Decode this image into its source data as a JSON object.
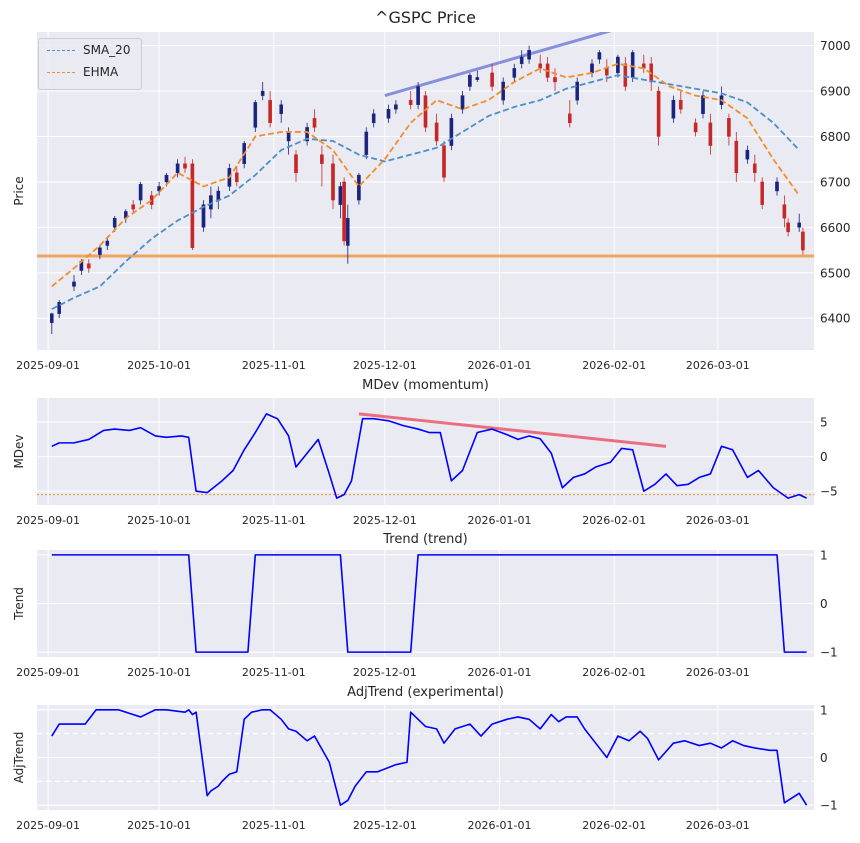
{
  "figure": {
    "background": "#ffffff",
    "axes_background": "#eaeaf2",
    "grid_color": "#ffffff"
  },
  "chart_data": [
    {
      "type": "candlestick",
      "title": "^GSPC Price",
      "ylabel": "Price",
      "ylim": [
        6330,
        7030
      ],
      "yticks": [
        "6400",
        "6500",
        "6600",
        "6700",
        "6800",
        "6900",
        "7000"
      ],
      "xticks": [
        "2025-09-01",
        "2025-10-01",
        "2025-11-01",
        "2025-12-01",
        "2026-01-01",
        "2026-02-01",
        "2026-03-01"
      ],
      "xrange": [
        "2025-08-29",
        "2026-03-27"
      ],
      "up_color": "#1a237e",
      "down_color": "#c62828",
      "ohlc": [
        [
          "2025-09-02",
          6390,
          6412,
          6365,
          6410
        ],
        [
          "2025-09-04",
          6410,
          6440,
          6400,
          6435
        ],
        [
          "2025-09-08",
          6470,
          6495,
          6460,
          6480
        ],
        [
          "2025-09-10",
          6505,
          6530,
          6495,
          6525
        ],
        [
          "2025-09-12",
          6520,
          6530,
          6500,
          6510
        ],
        [
          "2025-09-15",
          6540,
          6560,
          6530,
          6555
        ],
        [
          "2025-09-17",
          6560,
          6580,
          6550,
          6570
        ],
        [
          "2025-09-19",
          6600,
          6625,
          6590,
          6620
        ],
        [
          "2025-09-22",
          6620,
          6640,
          6610,
          6635
        ],
        [
          "2025-09-24",
          6650,
          6660,
          6630,
          6640
        ],
        [
          "2025-09-26",
          6660,
          6700,
          6650,
          6695
        ],
        [
          "2025-09-29",
          6670,
          6680,
          6640,
          6650
        ],
        [
          "2025-10-01",
          6680,
          6700,
          6670,
          6690
        ],
        [
          "2025-10-03",
          6700,
          6720,
          6690,
          6715
        ],
        [
          "2025-10-06",
          6720,
          6750,
          6710,
          6740
        ],
        [
          "2025-10-08",
          6740,
          6755,
          6720,
          6730
        ],
        [
          "2025-10-10",
          6740,
          6750,
          6550,
          6555
        ],
        [
          "2025-10-13",
          6600,
          6660,
          6590,
          6650
        ],
        [
          "2025-10-15",
          6640,
          6690,
          6620,
          6670
        ],
        [
          "2025-10-17",
          6660,
          6690,
          6640,
          6680
        ],
        [
          "2025-10-20",
          6690,
          6740,
          6680,
          6730
        ],
        [
          "2025-10-22",
          6720,
          6735,
          6690,
          6700
        ],
        [
          "2025-10-24",
          6740,
          6790,
          6730,
          6785
        ],
        [
          "2025-10-27",
          6820,
          6880,
          6810,
          6875
        ],
        [
          "2025-10-29",
          6890,
          6920,
          6880,
          6900
        ],
        [
          "2025-10-31",
          6880,
          6900,
          6820,
          6830
        ],
        [
          "2025-11-03",
          6850,
          6880,
          6830,
          6870
        ],
        [
          "2025-11-05",
          6790,
          6820,
          6760,
          6810
        ],
        [
          "2025-11-07",
          6760,
          6770,
          6700,
          6720
        ],
        [
          "2025-11-10",
          6790,
          6830,
          6780,
          6820
        ],
        [
          "2025-11-12",
          6840,
          6860,
          6810,
          6820
        ],
        [
          "2025-11-14",
          6760,
          6780,
          6690,
          6740
        ],
        [
          "2025-11-17",
          6740,
          6760,
          6640,
          6660
        ],
        [
          "2025-11-19",
          6650,
          6700,
          6620,
          6690
        ],
        [
          "2025-11-20",
          6700,
          6710,
          6560,
          6570
        ],
        [
          "2025-11-21",
          6560,
          6650,
          6520,
          6620
        ],
        [
          "2025-11-24",
          6660,
          6720,
          6650,
          6715
        ],
        [
          "2025-11-26",
          6760,
          6820,
          6750,
          6810
        ],
        [
          "2025-11-28",
          6830,
          6860,
          6820,
          6850
        ],
        [
          "2025-12-02",
          6840,
          6870,
          6830,
          6860
        ],
        [
          "2025-12-04",
          6860,
          6880,
          6850,
          6870
        ],
        [
          "2025-12-08",
          6880,
          6900,
          6860,
          6870
        ],
        [
          "2025-12-10",
          6870,
          6920,
          6860,
          6910
        ],
        [
          "2025-12-12",
          6890,
          6900,
          6810,
          6820
        ],
        [
          "2025-12-15",
          6830,
          6850,
          6780,
          6790
        ],
        [
          "2025-12-17",
          6780,
          6790,
          6700,
          6710
        ],
        [
          "2025-12-19",
          6780,
          6850,
          6770,
          6840
        ],
        [
          "2025-12-22",
          6860,
          6900,
          6850,
          6890
        ],
        [
          "2025-12-24",
          6910,
          6940,
          6900,
          6935
        ],
        [
          "2025-12-26",
          6925,
          6945,
          6920,
          6930
        ],
        [
          "2025-12-30",
          6940,
          6960,
          6900,
          6910
        ],
        [
          "2026-01-02",
          6880,
          6930,
          6870,
          6920
        ],
        [
          "2026-01-05",
          6930,
          6960,
          6920,
          6950
        ],
        [
          "2026-01-07",
          6960,
          6990,
          6950,
          6975
        ],
        [
          "2026-01-09",
          6970,
          7000,
          6960,
          6990
        ],
        [
          "2026-01-12",
          6960,
          6980,
          6940,
          6950
        ],
        [
          "2026-01-14",
          6960,
          6975,
          6920,
          6930
        ],
        [
          "2026-01-16",
          6930,
          6950,
          6900,
          6920
        ],
        [
          "2026-01-20",
          6850,
          6880,
          6820,
          6830
        ],
        [
          "2026-01-22",
          6880,
          6930,
          6870,
          6920
        ],
        [
          "2026-01-26",
          6940,
          6970,
          6930,
          6960
        ],
        [
          "2026-01-28",
          6970,
          6990,
          6960,
          6985
        ],
        [
          "2026-01-30",
          6950,
          6970,
          6920,
          6935
        ],
        [
          "2026-02-02",
          6940,
          6980,
          6930,
          6975
        ],
        [
          "2026-02-04",
          6960,
          6975,
          6900,
          6910
        ],
        [
          "2026-02-06",
          6930,
          6990,
          6920,
          6985
        ],
        [
          "2026-02-09",
          6960,
          6980,
          6940,
          6950
        ],
        [
          "2026-02-11",
          6960,
          6975,
          6900,
          6920
        ],
        [
          "2026-02-13",
          6900,
          6910,
          6780,
          6800
        ],
        [
          "2026-02-17",
          6840,
          6890,
          6830,
          6880
        ],
        [
          "2026-02-19",
          6880,
          6900,
          6850,
          6860
        ],
        [
          "2026-02-23",
          6830,
          6840,
          6800,
          6810
        ],
        [
          "2026-02-25",
          6850,
          6900,
          6840,
          6890
        ],
        [
          "2026-02-27",
          6830,
          6850,
          6760,
          6780
        ],
        [
          "2026-03-02",
          6870,
          6910,
          6860,
          6890
        ],
        [
          "2026-03-04",
          6840,
          6850,
          6780,
          6800
        ],
        [
          "2026-03-06",
          6790,
          6810,
          6700,
          6720
        ],
        [
          "2026-03-09",
          6750,
          6780,
          6740,
          6770
        ],
        [
          "2026-03-11",
          6740,
          6760,
          6700,
          6720
        ],
        [
          "2026-03-13",
          6700,
          6710,
          6640,
          6650
        ],
        [
          "2026-03-17",
          6680,
          6710,
          6670,
          6700
        ],
        [
          "2026-03-19",
          6650,
          6670,
          6600,
          6620
        ],
        [
          "2026-03-20",
          6610,
          6620,
          6580,
          6590
        ],
        [
          "2026-03-23",
          6600,
          6630,
          6590,
          6610
        ],
        [
          "2026-03-24",
          6590,
          6600,
          6540,
          6550
        ]
      ],
      "series": [
        {
          "name": "SMA_20",
          "color": "#4c8fc7",
          "style": "dashed",
          "x": [
            "2025-09-02",
            "2025-09-08",
            "2025-09-15",
            "2025-09-22",
            "2025-09-29",
            "2025-10-06",
            "2025-10-13",
            "2025-10-20",
            "2025-10-27",
            "2025-11-03",
            "2025-11-10",
            "2025-11-17",
            "2025-11-24",
            "2025-12-01",
            "2025-12-08",
            "2025-12-15",
            "2025-12-22",
            "2025-12-29",
            "2026-01-05",
            "2026-01-12",
            "2026-01-19",
            "2026-01-26",
            "2026-02-02",
            "2026-02-09",
            "2026-02-16",
            "2026-02-23",
            "2026-03-02",
            "2026-03-09",
            "2026-03-16",
            "2026-03-23"
          ],
          "y": [
            6420,
            6445,
            6470,
            6525,
            6575,
            6615,
            6645,
            6670,
            6715,
            6770,
            6795,
            6790,
            6760,
            6745,
            6760,
            6775,
            6810,
            6845,
            6865,
            6880,
            6905,
            6920,
            6935,
            6925,
            6915,
            6905,
            6895,
            6875,
            6830,
            6770
          ]
        },
        {
          "name": "EHMA",
          "color": "#f28e2b",
          "style": "dashed",
          "x": [
            "2025-09-02",
            "2025-09-08",
            "2025-09-15",
            "2025-09-22",
            "2025-09-29",
            "2025-10-06",
            "2025-10-13",
            "2025-10-20",
            "2025-10-27",
            "2025-11-03",
            "2025-11-10",
            "2025-11-17",
            "2025-11-24",
            "2025-12-01",
            "2025-12-08",
            "2025-12-15",
            "2025-12-22",
            "2025-12-29",
            "2026-01-05",
            "2026-01-12",
            "2026-01-19",
            "2026-01-26",
            "2026-02-02",
            "2026-02-09",
            "2026-02-16",
            "2026-02-23",
            "2026-03-02",
            "2026-03-09",
            "2026-03-16",
            "2026-03-23"
          ],
          "y": [
            6470,
            6510,
            6560,
            6620,
            6660,
            6720,
            6690,
            6710,
            6800,
            6810,
            6810,
            6770,
            6690,
            6750,
            6830,
            6880,
            6860,
            6880,
            6920,
            6950,
            6930,
            6940,
            6960,
            6950,
            6910,
            6890,
            6880,
            6840,
            6750,
            6670
          ]
        }
      ],
      "support_level": {
        "y": 6537,
        "color": "#f28e2b"
      },
      "trendline": {
        "x": [
          "2025-12-01",
          "2026-02-01"
        ],
        "y": [
          6890,
          7035
        ],
        "color": "#5b6ad0"
      }
    },
    {
      "type": "line",
      "title": "MDev (momentum)",
      "ylabel": "MDev",
      "ylim": [
        -7,
        8.5
      ],
      "yticks": [
        "-5",
        "0",
        "5"
      ],
      "color": "#0000ff",
      "reference_level": {
        "y": -5.5,
        "color": "#f28e2b"
      },
      "trendline": {
        "x": [
          "2025-11-24",
          "2026-02-15"
        ],
        "y": [
          6.2,
          1.5
        ],
        "color": "#e8455a"
      },
      "x": [
        "2025-09-02",
        "2025-09-04",
        "2025-09-08",
        "2025-09-12",
        "2025-09-16",
        "2025-09-19",
        "2025-09-23",
        "2025-09-26",
        "2025-09-30",
        "2025-10-03",
        "2025-10-07",
        "2025-10-09",
        "2025-10-11",
        "2025-10-14",
        "2025-10-18",
        "2025-10-21",
        "2025-10-24",
        "2025-10-27",
        "2025-10-30",
        "2025-11-02",
        "2025-11-05",
        "2025-11-07",
        "2025-11-10",
        "2025-11-13",
        "2025-11-16",
        "2025-11-18",
        "2025-11-20",
        "2025-11-22",
        "2025-11-25",
        "2025-11-28",
        "2025-12-02",
        "2025-12-06",
        "2025-12-10",
        "2025-12-13",
        "2025-12-16",
        "2025-12-19",
        "2025-12-22",
        "2025-12-26",
        "2025-12-30",
        "2026-01-03",
        "2026-01-06",
        "2026-01-09",
        "2026-01-12",
        "2026-01-15",
        "2026-01-18",
        "2026-01-21",
        "2026-01-24",
        "2026-01-27",
        "2026-01-31",
        "2026-02-03",
        "2026-02-06",
        "2026-02-09",
        "2026-02-12",
        "2026-02-15",
        "2026-02-18",
        "2026-02-21",
        "2026-02-24",
        "2026-02-27",
        "2026-03-02",
        "2026-03-05",
        "2026-03-09",
        "2026-03-12",
        "2026-03-16",
        "2026-03-20",
        "2026-03-23",
        "2026-03-25"
      ],
      "y": [
        1.5,
        2.0,
        2.0,
        2.5,
        3.8,
        4.0,
        3.8,
        4.2,
        3.0,
        2.8,
        3.0,
        2.8,
        -5.0,
        -5.2,
        -3.5,
        -2.0,
        1.0,
        3.5,
        6.2,
        5.5,
        3.0,
        -1.5,
        0.5,
        2.5,
        -2.5,
        -6.0,
        -5.5,
        -3.5,
        5.5,
        5.5,
        5.2,
        4.5,
        4.0,
        3.5,
        3.5,
        -3.5,
        -2.0,
        3.5,
        4.0,
        3.2,
        2.5,
        3.0,
        2.6,
        0.5,
        -4.5,
        -3.0,
        -2.5,
        -1.5,
        -0.8,
        1.2,
        1.0,
        -5.0,
        -4.0,
        -2.5,
        -4.2,
        -4.0,
        -3.0,
        -2.5,
        1.5,
        1.0,
        -3.0,
        -2.0,
        -4.5,
        -6.0,
        -5.5,
        -6.0
      ]
    },
    {
      "type": "line",
      "title": "Trend (trend)",
      "ylabel": "Trend",
      "ylim": [
        -1.1,
        1.1
      ],
      "yticks": [
        "-1",
        "0",
        "1"
      ],
      "color": "#0000ff",
      "x": [
        "2025-09-02",
        "2025-10-09",
        "2025-10-11",
        "2025-10-25",
        "2025-10-27",
        "2025-11-19",
        "2025-11-21",
        "2025-12-08",
        "2025-12-10",
        "2026-03-17",
        "2026-03-19",
        "2026-03-25"
      ],
      "y": [
        1,
        1,
        -1,
        -1,
        1,
        1,
        -1,
        -1,
        1,
        1,
        -1,
        -1
      ]
    },
    {
      "type": "line",
      "title": "AdjTrend (experimental)",
      "ylabel": "AdjTrend",
      "ylim": [
        -1.1,
        1.1
      ],
      "yticks": [
        "-1",
        "0",
        "1"
      ],
      "gridlines": [
        0.5,
        -0.5
      ],
      "color": "#0000ff",
      "x": [
        "2025-09-02",
        "2025-09-04",
        "2025-09-11",
        "2025-09-14",
        "2025-09-20",
        "2025-09-26",
        "2025-09-30",
        "2025-10-03",
        "2025-10-08",
        "2025-10-09",
        "2025-10-10",
        "2025-10-11",
        "2025-10-14",
        "2025-10-15",
        "2025-10-17",
        "2025-10-18",
        "2025-10-20",
        "2025-10-22",
        "2025-10-24",
        "2025-10-26",
        "2025-10-29",
        "2025-10-31",
        "2025-11-03",
        "2025-11-05",
        "2025-11-07",
        "2025-11-10",
        "2025-11-12",
        "2025-11-16",
        "2025-11-19",
        "2025-11-21",
        "2025-11-23",
        "2025-11-26",
        "2025-11-29",
        "2025-12-04",
        "2025-12-07",
        "2025-12-08",
        "2025-12-10",
        "2025-12-12",
        "2025-12-15",
        "2025-12-17",
        "2025-12-20",
        "2025-12-24",
        "2025-12-27",
        "2025-12-30",
        "2026-01-03",
        "2026-01-06",
        "2026-01-09",
        "2026-01-12",
        "2026-01-15",
        "2026-01-17",
        "2026-01-19",
        "2026-01-22",
        "2026-01-24",
        "2026-01-27",
        "2026-01-30",
        "2026-02-02",
        "2026-02-05",
        "2026-02-08",
        "2026-02-10",
        "2026-02-13",
        "2026-02-17",
        "2026-02-20",
        "2026-02-24",
        "2026-02-27",
        "2026-03-02",
        "2026-03-05",
        "2026-03-08",
        "2026-03-11",
        "2026-03-15",
        "2026-03-17",
        "2026-03-19",
        "2026-03-23",
        "2026-03-25"
      ],
      "y": [
        0.45,
        0.7,
        0.7,
        1.0,
        1.0,
        0.85,
        1.0,
        1.0,
        0.95,
        1.0,
        0.9,
        0.95,
        -0.8,
        -0.7,
        -0.6,
        -0.5,
        -0.35,
        -0.3,
        0.8,
        0.95,
        1.0,
        1.0,
        0.8,
        0.6,
        0.55,
        0.35,
        0.45,
        -0.1,
        -1.0,
        -0.9,
        -0.6,
        -0.3,
        -0.3,
        -0.15,
        -0.1,
        0.95,
        0.8,
        0.65,
        0.6,
        0.3,
        0.6,
        0.7,
        0.45,
        0.7,
        0.8,
        0.85,
        0.8,
        0.6,
        0.9,
        0.75,
        0.85,
        0.85,
        0.6,
        0.3,
        0.0,
        0.45,
        0.35,
        0.55,
        0.4,
        -0.05,
        0.3,
        0.35,
        0.25,
        0.3,
        0.2,
        0.35,
        0.25,
        0.2,
        0.15,
        0.15,
        -0.95,
        -0.75,
        -1.0
      ]
    }
  ],
  "legend": {
    "placement": "top-left"
  }
}
